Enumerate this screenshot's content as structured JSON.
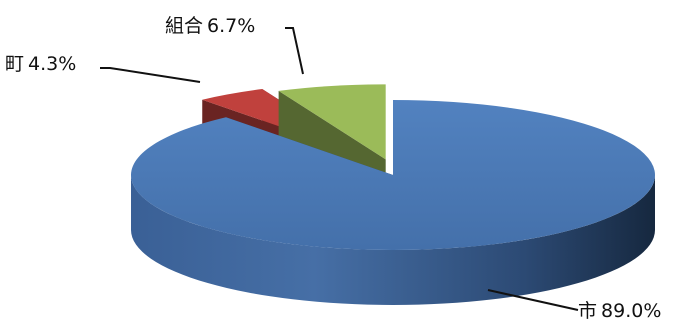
{
  "chart_data": {
    "type": "pie",
    "style": "3d-exploded",
    "slices": [
      {
        "label": "市",
        "value": 89.0,
        "display": "89.0%",
        "color": "#4a76b3"
      },
      {
        "label": "町",
        "value": 4.3,
        "display": "4.3%",
        "color": "#c0413d"
      },
      {
        "label": "組合",
        "value": 6.7,
        "display": "6.7%",
        "color": "#9bbb59"
      }
    ],
    "legend": "none"
  }
}
